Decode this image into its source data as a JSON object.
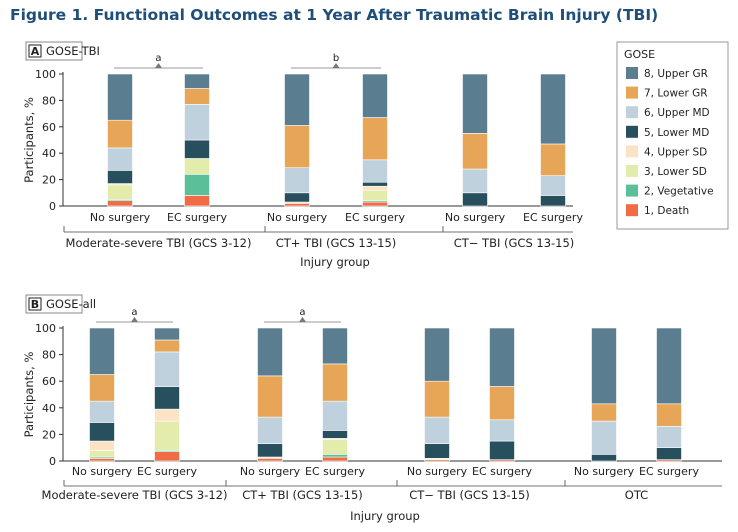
{
  "figure_title": "Figure 1.  Functional Outcomes at 1 Year After Traumatic Brain Injury (TBI)",
  "legend": {
    "title": "GOSE",
    "position": "top-right",
    "items": [
      {
        "label": "8, Upper GR",
        "color": "#5b7d90"
      },
      {
        "label": "7, Lower GR",
        "color": "#e7a557"
      },
      {
        "label": "6, Upper MD",
        "color": "#bfd1dc"
      },
      {
        "label": "5, Lower MD",
        "color": "#274f5e"
      },
      {
        "label": "4, Upper SD",
        "color": "#fde3c5"
      },
      {
        "label": "3, Lower SD",
        "color": "#e3ecaa"
      },
      {
        "label": "2, Vegetative",
        "color": "#5bc09a"
      },
      {
        "label": "1, Death",
        "color": "#ef6c44"
      }
    ]
  },
  "chart_data": [
    {
      "type": "bar",
      "stacked": true,
      "panel": "A",
      "title": "GOSE-TBI",
      "xlabel": "Injury group",
      "ylabel": "Participants, %",
      "ylim": [
        0,
        100
      ],
      "yticks": [
        0,
        20,
        40,
        60,
        80,
        100
      ],
      "groups": [
        {
          "label": "Moderate-severe TBI (GCS 3-12)",
          "significance": "a",
          "bars": [
            {
              "label": "No surgery",
              "values": [
                35,
                21,
                17,
                10,
                1,
                11,
                1,
                4
              ]
            },
            {
              "label": "EC surgery",
              "values": [
                11,
                12,
                27,
                14,
                0,
                12,
                16,
                8
              ]
            }
          ]
        },
        {
          "label": "CT+ TBI (GCS 13-15)",
          "significance": "b",
          "bars": [
            {
              "label": "No surgery",
              "values": [
                39,
                32,
                19,
                7,
                1,
                0,
                0,
                2
              ]
            },
            {
              "label": "EC surgery",
              "values": [
                33,
                32,
                17,
                3,
                3,
                8,
                1,
                3
              ]
            }
          ]
        },
        {
          "label": "CT− TBI (GCS 13-15)",
          "significance": "",
          "bars": [
            {
              "label": "No surgery",
              "values": [
                45,
                27,
                18,
                10,
                0,
                0,
                0,
                0
              ]
            },
            {
              "label": "EC surgery",
              "values": [
                53,
                24,
                15,
                8,
                0,
                0,
                0,
                0
              ]
            }
          ]
        }
      ]
    },
    {
      "type": "bar",
      "stacked": true,
      "panel": "B",
      "title": "GOSE-all",
      "xlabel": "Injury group",
      "ylabel": "Participants, %",
      "ylim": [
        0,
        100
      ],
      "yticks": [
        0,
        20,
        40,
        60,
        80,
        100
      ],
      "groups": [
        {
          "label": "Moderate-severe TBI (GCS 3-12)",
          "significance": "a",
          "bars": [
            {
              "label": "No surgery",
              "values": [
                35,
                20,
                16,
                14,
                7,
                5,
                1,
                2
              ]
            },
            {
              "label": "EC surgery",
              "values": [
                9,
                9,
                26,
                17,
                9,
                22,
                1,
                7
              ]
            }
          ]
        },
        {
          "label": "CT+ TBI (GCS 13-15)",
          "significance": "a",
          "bars": [
            {
              "label": "No surgery",
              "values": [
                36,
                31,
                20,
                10,
                1,
                0,
                0,
                2
              ]
            },
            {
              "label": "EC surgery",
              "values": [
                27,
                28,
                22,
                6,
                1,
                11,
                2,
                3
              ]
            }
          ]
        },
        {
          "label": "CT− TBI (GCS 13-15)",
          "significance": "",
          "bars": [
            {
              "label": "No surgery",
              "values": [
                40,
                27,
                20,
                11,
                1,
                0,
                0,
                1
              ]
            },
            {
              "label": "EC surgery",
              "values": [
                44,
                25,
                16,
                14,
                0,
                0,
                0,
                1
              ]
            }
          ]
        },
        {
          "label": "OTC",
          "significance": "",
          "bars": [
            {
              "label": "No surgery",
              "values": [
                57,
                13,
                25,
                5,
                0,
                0,
                0,
                0
              ]
            },
            {
              "label": "EC surgery",
              "values": [
                57,
                17,
                16,
                9,
                0,
                0,
                0,
                1
              ]
            }
          ]
        }
      ]
    }
  ]
}
